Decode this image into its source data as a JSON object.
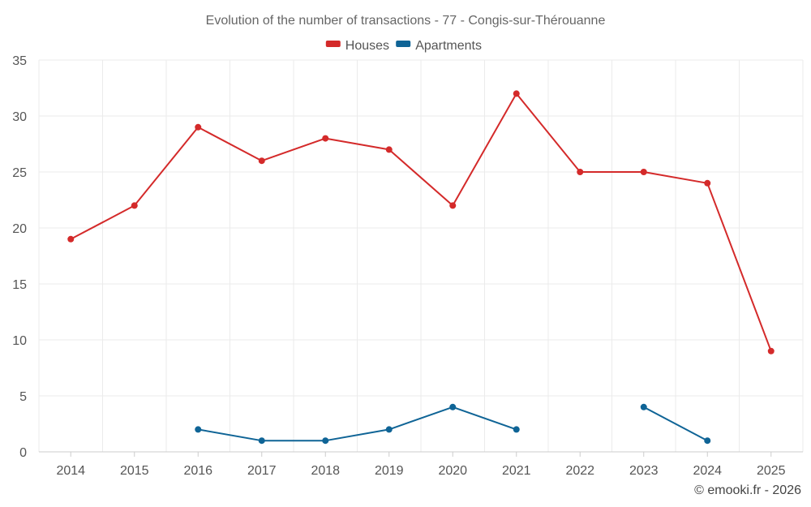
{
  "chart_data": {
    "type": "line",
    "title": "Evolution of the number of transactions - 77 - Congis-sur-Thérouanne",
    "categories": [
      "2014",
      "2015",
      "2016",
      "2017",
      "2018",
      "2019",
      "2020",
      "2021",
      "2022",
      "2023",
      "2024",
      "2025"
    ],
    "ylim": [
      0,
      35
    ],
    "yticks": [
      0,
      5,
      10,
      15,
      20,
      25,
      30,
      35
    ],
    "ytick_labels": [
      "0",
      "5",
      "10",
      "15",
      "20",
      "25",
      "30",
      "35"
    ],
    "grid": true,
    "legend_position": "top-center",
    "series": [
      {
        "name": "Houses",
        "color": "#d42a2a",
        "values": [
          19,
          22,
          29,
          26,
          28,
          27,
          22,
          32,
          25,
          25,
          24,
          9
        ]
      },
      {
        "name": "Apartments",
        "color": "#0f6496",
        "values": [
          null,
          null,
          2,
          1,
          1,
          2,
          4,
          2,
          null,
          4,
          1,
          null
        ]
      }
    ],
    "credit": "© emooki.fr - 2026"
  }
}
